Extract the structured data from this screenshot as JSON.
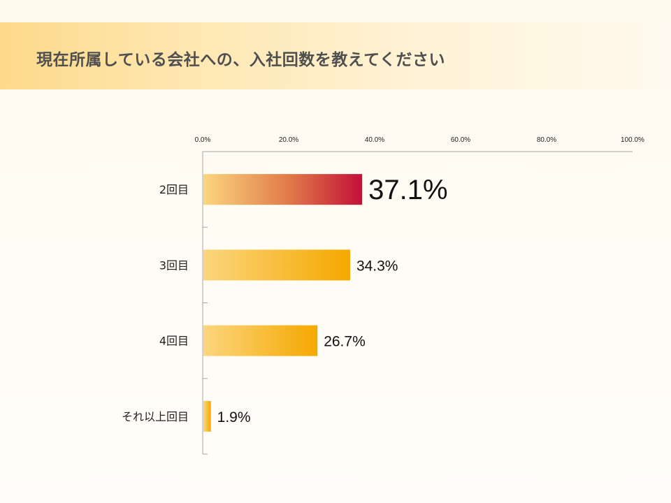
{
  "title": "現在所属している会社への、入社回数を教えてください",
  "colors": {
    "bar_start": "#fbd67e",
    "bar_end": "#f5a800",
    "highlight_start": "#fbd67e",
    "highlight_mid": "#e07848",
    "highlight_end": "#c3103a",
    "highlight_text": "#c3103a",
    "axis": "#a6a6a6"
  },
  "chart_data": {
    "type": "bar",
    "orientation": "horizontal",
    "categories": [
      "2回目",
      "3回目",
      "4回目",
      "それ以上回目"
    ],
    "values": [
      37.1,
      34.3,
      26.7,
      1.9
    ],
    "value_labels": [
      "37.1%",
      "34.3%",
      "26.7%",
      "1.9%"
    ],
    "highlight_index": 0,
    "xlim": [
      0,
      100
    ],
    "xticks": [
      0,
      20,
      40,
      60,
      80,
      100
    ],
    "xtick_labels": [
      "0.0%",
      "20.0%",
      "40.0%",
      "60.0%",
      "80.0%",
      "100.0%"
    ],
    "x_axis_position": "top",
    "grid": false,
    "legend": "none"
  }
}
